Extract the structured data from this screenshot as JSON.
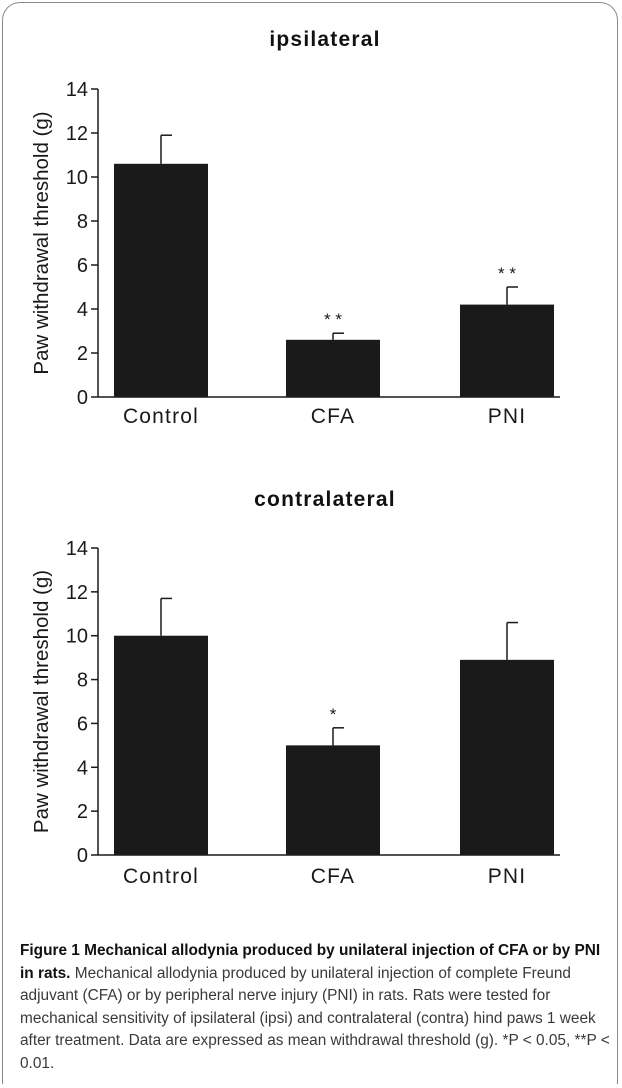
{
  "chart_data": [
    {
      "type": "bar",
      "title": "ipsilateral",
      "ylabel": "Paw withdrawal threshold (g)",
      "xlabel": "",
      "categories": [
        "Control",
        "CFA",
        "PNI"
      ],
      "values": [
        10.6,
        2.6,
        4.2
      ],
      "errors": [
        1.3,
        0.3,
        0.8
      ],
      "significance": [
        "",
        "* *",
        "* *"
      ],
      "ylim": [
        0,
        14
      ],
      "yticks": [
        0,
        2,
        4,
        6,
        8,
        10,
        12,
        14
      ],
      "grid": false,
      "bar_color": "#1a1a1a"
    },
    {
      "type": "bar",
      "title": "contralateral",
      "ylabel": "Paw withdrawal threshold (g)",
      "xlabel": "",
      "categories": [
        "Control",
        "CFA",
        "PNI"
      ],
      "values": [
        10.0,
        5.0,
        8.9
      ],
      "errors": [
        1.7,
        0.8,
        1.7
      ],
      "significance": [
        "",
        "*",
        ""
      ],
      "ylim": [
        0,
        14
      ],
      "yticks": [
        0,
        2,
        4,
        6,
        8,
        10,
        12,
        14
      ],
      "grid": false,
      "bar_color": "#1a1a1a"
    }
  ],
  "caption": {
    "title": "Figure 1 Mechanical allodynia produced by unilateral injection of CFA or by PNI in rats.",
    "body": " Mechanical allodynia produced by unilateral injection of complete Freund adjuvant (CFA) or by peripheral nerve injury (PNI) in rats. Rats were tested for mechanical sensitivity of ipsilateral (ipsi) and contralateral (contra) hind paws 1 week after treatment. Data are expressed as mean withdrawal threshold (g). *P < 0.05, **P < 0.01."
  }
}
